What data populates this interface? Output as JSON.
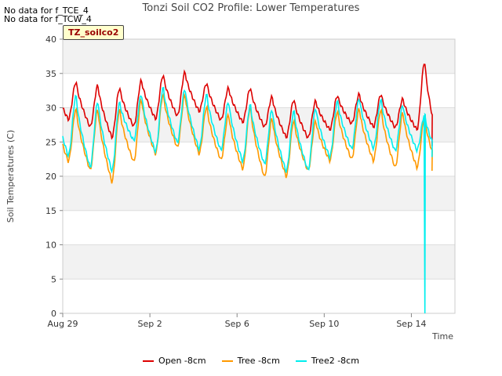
{
  "notes": [
    "No data for f_TCE_4",
    "No data for f_TCW_4"
  ],
  "tz_label": "TZ_soilco2",
  "chart_data": {
    "type": "line",
    "title": "Tonzi Soil CO2 Profile: Lower Temperatures",
    "xlabel": "Time",
    "ylabel": "Soil Temperatures (C)",
    "ylim": [
      0,
      40
    ],
    "yticks": [
      0,
      5,
      10,
      15,
      20,
      25,
      30,
      35,
      40
    ],
    "xlim": [
      "2023-08-29",
      "2023-09-16"
    ],
    "xticks": [
      {
        "date": "2023-08-29",
        "label": "Aug 29"
      },
      {
        "date": "2023-09-02",
        "label": "Sep 2"
      },
      {
        "date": "2023-09-06",
        "label": "Sep 6"
      },
      {
        "date": "2023-09-10",
        "label": "Sep 10"
      },
      {
        "date": "2023-09-14",
        "label": "Sep 14"
      }
    ],
    "grid": true,
    "legend_position": "bottom",
    "series": [
      {
        "name": "Open -8cm",
        "color": "#dd0000",
        "daily_min": [
          28.3,
          27.2,
          25.7,
          27.3,
          28.4,
          28.8,
          29.5,
          28.2,
          27.9,
          27.2,
          25.7,
          25.6,
          26.8,
          27.7,
          27.2,
          27.1,
          26.8
        ],
        "daily_max": [
          33.8,
          33.3,
          32.9,
          34.0,
          34.8,
          35.2,
          33.6,
          32.9,
          32.9,
          31.6,
          31.2,
          31.0,
          31.8,
          32.0,
          32.0,
          31.3,
          36.8
        ],
        "end_value": 24.4
      },
      {
        "name": "Tree -8cm",
        "color": "#ff9900",
        "daily_min": [
          22.2,
          20.9,
          19.2,
          22.1,
          23.3,
          24.2,
          23.3,
          22.4,
          21.1,
          19.9,
          20.0,
          20.8,
          22.3,
          22.5,
          22.3,
          21.3,
          21.3
        ],
        "daily_max": [
          29.9,
          29.8,
          29.8,
          31.2,
          32.0,
          31.9,
          30.2,
          29.0,
          30.1,
          28.5,
          28.2,
          28.1,
          29.5,
          29.9,
          29.8,
          29.3,
          28.6
        ],
        "end_value": 20.8
      },
      {
        "name": "Tree2 -8cm",
        "color": "#00eeee",
        "daily_min": [
          23.0,
          21.3,
          20.8,
          25.2,
          23.6,
          24.9,
          24.0,
          23.8,
          22.2,
          21.8,
          20.7,
          20.9,
          22.8,
          24.0,
          24.1,
          23.7,
          23.8
        ],
        "daily_max": [
          31.8,
          31.0,
          30.8,
          32.0,
          33.0,
          32.8,
          32.0,
          30.9,
          30.5,
          29.8,
          29.6,
          30.0,
          31.0,
          31.4,
          31.2,
          30.4,
          29.0
        ],
        "drop_to": 0,
        "end_value": 22.8
      }
    ]
  }
}
